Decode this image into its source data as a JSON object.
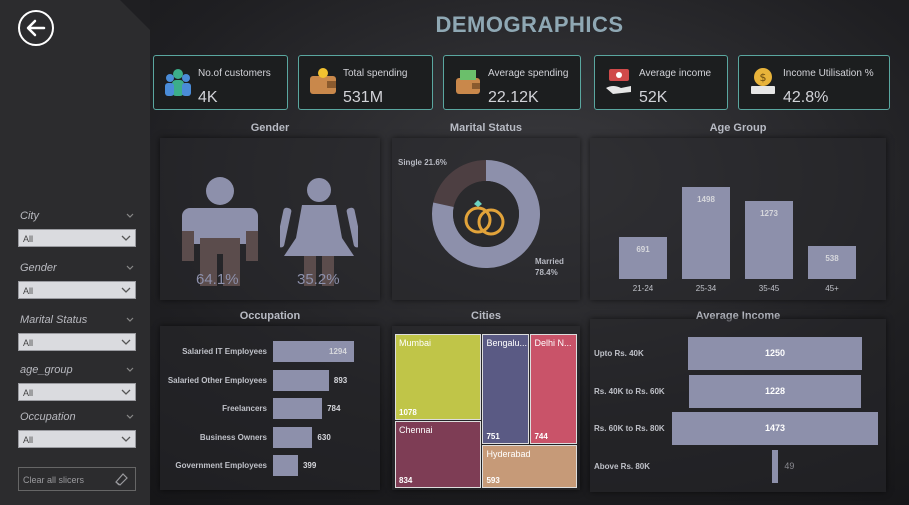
{
  "title": "DEMOGRAPHICS",
  "sidebar": {
    "slicers": [
      {
        "label": "City",
        "value": "All"
      },
      {
        "label": "Gender",
        "value": "All"
      },
      {
        "label": "Marital Status",
        "value": "All"
      },
      {
        "label": "age_group",
        "value": "All"
      },
      {
        "label": "Occupation",
        "value": "All"
      }
    ],
    "clear_label": "Clear all slicers"
  },
  "kpis": [
    {
      "label": "No.of customers",
      "value": "4K",
      "icon": "customers-icon"
    },
    {
      "label": "Total spending",
      "value": "531M",
      "icon": "wallet-icon"
    },
    {
      "label": "Average spending",
      "value": "22.12K",
      "icon": "spending-icon"
    },
    {
      "label": "Average income",
      "value": "52K",
      "icon": "income-hand-icon"
    },
    {
      "label": "Income Utilisation %",
      "value": "42.8%",
      "icon": "dollar-laptop-icon"
    }
  ],
  "gender": {
    "title": "Gender",
    "male": "64.1%",
    "female": "35.2%"
  },
  "marital": {
    "title": "Marital Status",
    "single_label": "Single 21.6%",
    "married_label": "Married",
    "married_pct": "78.4%"
  },
  "age": {
    "title": "Age Group"
  },
  "occupation": {
    "title": "Occupation"
  },
  "cities": {
    "title": "Cities"
  },
  "avg_income": {
    "title": "Average Income"
  },
  "colors": {
    "bar": "#8d90ab",
    "accent": "#5aa7a0",
    "title": "#8fa8b4"
  },
  "chart_data": [
    {
      "type": "pie",
      "name": "Marital Status",
      "categories": [
        "Single",
        "Married"
      ],
      "values": [
        21.6,
        78.4
      ]
    },
    {
      "type": "bar",
      "name": "Age Group",
      "categories": [
        "21-24",
        "25-34",
        "35-45",
        "45+"
      ],
      "values": [
        691,
        1498,
        1273,
        538
      ]
    },
    {
      "type": "bar",
      "name": "Occupation",
      "categories": [
        "Salaried IT Employees",
        "Salaried Other Employees",
        "Freelancers",
        "Business Owners",
        "Government Employees"
      ],
      "values": [
        1294,
        893,
        784,
        630,
        399
      ]
    },
    {
      "type": "table",
      "name": "Cities",
      "categories": [
        "Mumbai",
        "Bengaluru",
        "Delhi NCR",
        "Chennai",
        "Hyderabad"
      ],
      "labels": [
        "Mumbai",
        "Bengalu...",
        "Delhi N...",
        "Chennai",
        "Hyderabad"
      ],
      "values": [
        1078,
        751,
        744,
        834,
        593
      ],
      "colors": [
        "#c0c548",
        "#5a5a84",
        "#c95369",
        "#7e3d55",
        "#c69a78"
      ]
    },
    {
      "type": "bar",
      "name": "Average Income",
      "categories": [
        "Upto Rs. 40K",
        "Rs. 40K to Rs. 60K",
        "Rs. 60K to Rs. 80K",
        "Above Rs. 80K"
      ],
      "values": [
        1250,
        1228,
        1473,
        49
      ]
    }
  ]
}
